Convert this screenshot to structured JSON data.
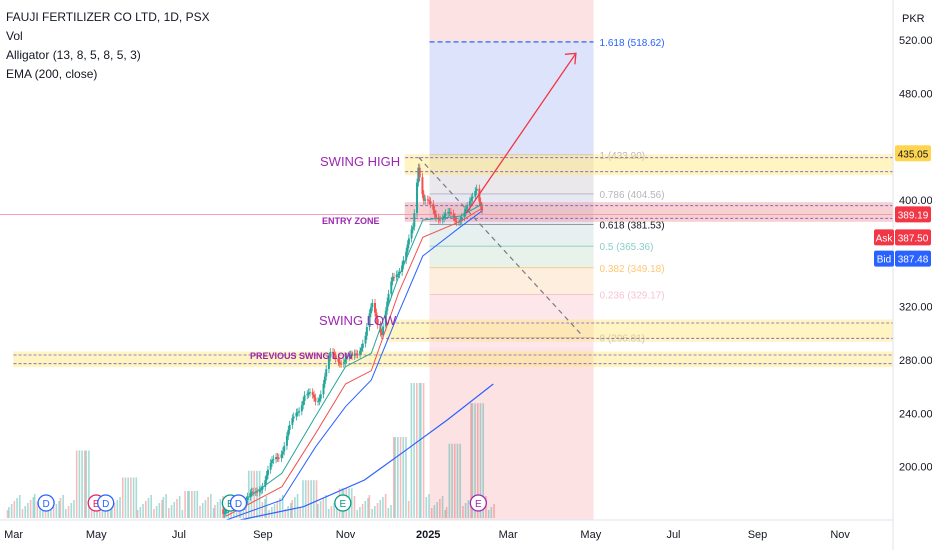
{
  "header": {
    "symbol_line": "FAUJI FERTILIZER CO LTD, 1D, PSX",
    "indicators": [
      "Vol",
      "Alligator (13, 8, 5, 8, 5, 3)",
      "EMA (200, close)"
    ]
  },
  "currency": "PKR",
  "price_tags": {
    "high_tag": "435.05",
    "last_tag": "389.19",
    "ask_label": "Ask",
    "ask_value": "387.50",
    "bid_label": "Bid",
    "bid_value": "387.48"
  },
  "annotations": {
    "swing_high": "SWING HIGH",
    "swing_low": "SWING LOW",
    "entry_zone": "ENTRY ZONE",
    "previous_swing_low": "PREVIOUS SWING LOW"
  },
  "event_markers": [
    {
      "date": "2024-03-25",
      "letter": "D",
      "color": "#2962ff"
    },
    {
      "date": "2024-05-01",
      "letter": "E",
      "color": "#e91e63"
    },
    {
      "date": "2024-05-08",
      "letter": "D",
      "color": "#2962ff"
    },
    {
      "date": "2024-08-08",
      "letter": "E",
      "color": "#089981"
    },
    {
      "date": "2024-08-14",
      "letter": "D",
      "color": "#2962ff"
    },
    {
      "date": "2024-10-30",
      "letter": "E",
      "color": "#089981"
    },
    {
      "date": "2025-02-07",
      "letter": "E",
      "color": "#9c27b0"
    }
  ],
  "colors": {
    "up": "#26a69a",
    "down": "#ef5350",
    "ema": "#2962ff",
    "jaw": "#2962ff",
    "teeth": "#ef5350",
    "lips": "#26a69a",
    "arrow": "#f23645",
    "fib_extension": "#2962ff"
  },
  "chart_data": {
    "type": "candlestick",
    "x_axis": {
      "type": "date",
      "start": "2024-02-20",
      "end": "2025-12-10",
      "tick_labels": [
        "Mar",
        "May",
        "Jul",
        "Sep",
        "Nov",
        "2025",
        "Mar",
        "May",
        "Jul",
        "Sep",
        "Nov"
      ],
      "tick_dates": [
        "2024-03-01",
        "2024-05-01",
        "2024-07-01",
        "2024-09-01",
        "2024-11-01",
        "2025-01-01",
        "2025-03-01",
        "2025-05-01",
        "2025-07-01",
        "2025-09-01",
        "2025-11-01"
      ]
    },
    "y_axis": {
      "ylim": [
        160,
        550
      ],
      "tick_values": [
        200,
        240,
        280,
        320,
        360,
        400,
        440,
        480,
        520
      ],
      "tick_labels": [
        "200.00",
        "240.00",
        "280.00",
        "320.00",
        "",
        "400.00",
        "",
        "480.00",
        "520.00"
      ]
    },
    "price_path": [
      [
        "2024-08-01",
        168
      ],
      [
        "2024-08-25",
        178
      ],
      [
        "2024-09-15",
        215
      ],
      [
        "2024-10-01",
        255
      ],
      [
        "2024-10-10",
        248
      ],
      [
        "2024-10-20",
        282
      ],
      [
        "2024-11-05",
        280
      ],
      [
        "2024-11-15",
        298
      ],
      [
        "2024-11-20",
        320
      ],
      [
        "2024-11-27",
        302
      ],
      [
        "2024-12-05",
        340
      ],
      [
        "2024-12-15",
        360
      ],
      [
        "2024-12-20",
        378
      ],
      [
        "2024-12-24",
        428
      ],
      [
        "2024-12-28",
        400
      ],
      [
        "2025-01-05",
        390
      ],
      [
        "2025-01-20",
        386
      ],
      [
        "2025-01-30",
        392
      ],
      [
        "2025-02-05",
        412
      ],
      [
        "2025-02-10",
        389
      ]
    ],
    "ema_200": [
      [
        "2024-08-15",
        160
      ],
      [
        "2024-10-01",
        170
      ],
      [
        "2024-11-15",
        190
      ],
      [
        "2024-12-15",
        212
      ],
      [
        "2025-01-15",
        235
      ],
      [
        "2025-02-18",
        262
      ]
    ],
    "alligator": {
      "jaw": [
        [
          "2024-08-05",
          160
        ],
        [
          "2024-09-15",
          175
        ],
        [
          "2024-10-10",
          215
        ],
        [
          "2024-11-01",
          245
        ],
        [
          "2024-11-20",
          265
        ],
        [
          "2024-12-10",
          315
        ],
        [
          "2024-12-28",
          358
        ],
        [
          "2025-01-25",
          380
        ],
        [
          "2025-02-10",
          392
        ]
      ],
      "teeth": [
        [
          "2024-08-05",
          163
        ],
        [
          "2024-09-15",
          185
        ],
        [
          "2024-10-10",
          225
        ],
        [
          "2024-11-01",
          262
        ],
        [
          "2024-11-20",
          272
        ],
        [
          "2024-12-10",
          330
        ],
        [
          "2024-12-28",
          372
        ],
        [
          "2025-01-25",
          384
        ],
        [
          "2025-02-10",
          394
        ]
      ],
      "lips": [
        [
          "2024-08-05",
          165
        ],
        [
          "2024-09-15",
          195
        ],
        [
          "2024-10-10",
          238
        ],
        [
          "2024-11-01",
          275
        ],
        [
          "2024-11-20",
          285
        ],
        [
          "2024-12-10",
          342
        ],
        [
          "2024-12-28",
          385
        ],
        [
          "2025-01-25",
          388
        ],
        [
          "2025-02-10",
          397
        ]
      ]
    },
    "volume": {
      "max_height_note": "relative 0-1",
      "bars": [
        [
          "2024-03-20",
          0.12
        ],
        [
          "2024-04-20",
          0.5
        ],
        [
          "2024-05-25",
          0.3
        ],
        [
          "2024-07-10",
          0.2
        ],
        [
          "2024-08-25",
          0.35
        ],
        [
          "2024-10-05",
          0.28
        ],
        [
          "2024-11-01",
          0.22
        ],
        [
          "2024-12-10",
          0.6
        ],
        [
          "2024-12-24",
          1.0
        ],
        [
          "2025-01-20",
          0.55
        ],
        [
          "2025-02-05",
          0.85
        ]
      ]
    },
    "fibonacci": {
      "start_date": "2025-01-02",
      "end_date": "2025-05-03",
      "levels": [
        {
          "ratio": "1.618",
          "price": 518.62,
          "label": "1.618 (518.62)",
          "color": "#2962ff"
        },
        {
          "ratio": "1",
          "price": 433.9,
          "label": "1 (433.90)",
          "color": "#787b86"
        },
        {
          "ratio": "0.786",
          "price": 404.56,
          "label": "0.786 (404.56)",
          "color": "#787b86"
        },
        {
          "ratio": "0.618",
          "price": 381.53,
          "label": "0.618 (381.53)",
          "color": "#131722"
        },
        {
          "ratio": "0.5",
          "price": 365.36,
          "label": "0.5 (365.36)",
          "color": "#26a69a"
        },
        {
          "ratio": "0.382",
          "price": 349.18,
          "label": "0.382 (349.18)",
          "color": "#ff9800"
        },
        {
          "ratio": "0.236",
          "price": 329.17,
          "label": "0.236 (329.17)",
          "color": "#f48fb1"
        },
        {
          "ratio": "0",
          "price": 296.81,
          "label": "0 (296.81)",
          "color": "#787b86"
        }
      ]
    },
    "zones": [
      {
        "name": "swing-high-zone",
        "from": "2024-12-15",
        "price_low": 419,
        "price_high": 434,
        "color": "#ffe97a"
      },
      {
        "name": "entry-zone",
        "from": "2024-12-15",
        "price_low": 384,
        "price_high": 398,
        "color": "#ef9a9a"
      },
      {
        "name": "swing-low-zone",
        "from": "2024-12-01",
        "price_low": 294,
        "price_high": 310,
        "color": "#ffe97a"
      },
      {
        "name": "previous-swing-low-zone",
        "from": "2024-03-01",
        "price_low": 275,
        "price_high": 286,
        "color": "#ffe97a"
      }
    ],
    "projection_arrow": {
      "from": [
        "2025-01-29",
        390
      ],
      "to": [
        "2025-04-20",
        510
      ]
    },
    "trendline": {
      "from": [
        "2024-12-25",
        432
      ],
      "to": [
        "2025-04-25",
        298
      ]
    }
  }
}
